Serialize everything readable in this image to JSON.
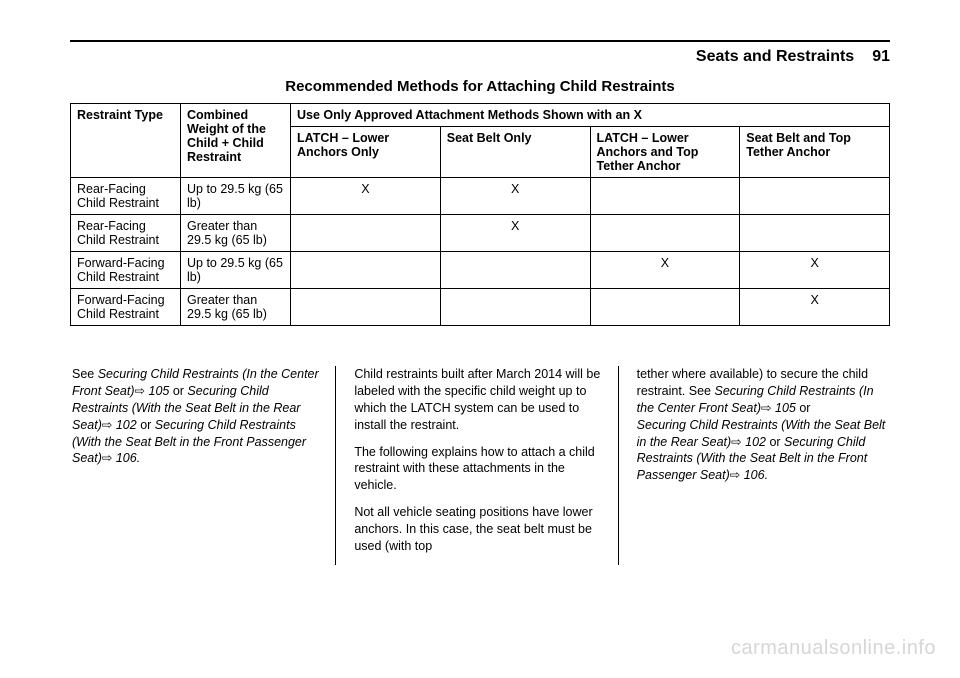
{
  "header": {
    "section": "Seats and Restraints",
    "page_number": "91"
  },
  "table": {
    "title": "Recommended Methods for Attaching Child Restraints",
    "col_headers": {
      "restraint_type": "Restraint Type",
      "combined_weight": "Combined Weight of the Child + Child Restraint",
      "use_only": "Use Only Approved Attachment Methods Shown with an X",
      "latch_lower_only_bold": "LATCH",
      "latch_lower_only_rest": " – Lower Anchors Only",
      "seat_belt_only": "Seat Belt Only",
      "latch_lower_top_bold": "LATCH",
      "latch_lower_top_rest": " – Lower Anchors and Top Tether Anchor",
      "seat_belt_top_bold": "Seat Belt and Top Tether Anchor"
    },
    "rows": [
      {
        "type": "Rear-Facing Child Restraint",
        "weight": "Up to 29.5 kg (65 lb)",
        "c1": "X",
        "c2": "X",
        "c3": "",
        "c4": ""
      },
      {
        "type": "Rear-Facing Child Restraint",
        "weight": "Greater than 29.5 kg (65 lb)",
        "c1": "",
        "c2": "X",
        "c3": "",
        "c4": ""
      },
      {
        "type": "Forward-Facing Child Restraint",
        "weight": "Up to 29.5 kg (65 lb)",
        "c1": "",
        "c2": "",
        "c3": "X",
        "c4": "X"
      },
      {
        "type": "Forward-Facing Child Restraint",
        "weight": "Greater than 29.5 kg (65 lb)",
        "c1": "",
        "c2": "",
        "c3": "",
        "c4": "X"
      }
    ]
  },
  "body": {
    "col1": {
      "see": "See ",
      "ref1": "Securing Child Restraints (In the Center Front Seat)",
      "ref1_page": " 105",
      "or1": " or ",
      "ref2": "Securing Child Restraints (With the Seat Belt in the Rear Seat)",
      "ref2_page": " 102",
      "or2": " or ",
      "ref3": "Securing Child Restraints (With the Seat Belt in the Front Passenger Seat)",
      "ref3_page": " 106.",
      "link_glyph": "⇨"
    },
    "col2": {
      "p1": "Child restraints built after March 2014 will be labeled with the specific child weight up to which the LATCH system can be used to install the restraint.",
      "p2": "The following explains how to attach a child restraint with these attachments in the vehicle.",
      "p3": "Not all vehicle seating positions have lower anchors. In this case, the seat belt must be used (with top"
    },
    "col3": {
      "p1a": "tether where available) to secure the child restraint. See ",
      "ref1": "Securing Child Restraints (In the Center Front Seat)",
      "ref1_page": " 105",
      "or1": " or",
      "ref2": "Securing Child Restraints (With the Seat Belt in the Rear Seat)",
      "ref2_page": " 102",
      "or2": " or ",
      "ref3": "Securing Child Restraints (With the Seat Belt in the Front Passenger Seat)",
      "ref3_page": " 106.",
      "link_glyph": "⇨"
    }
  },
  "watermark": "carmanualsonline.info"
}
